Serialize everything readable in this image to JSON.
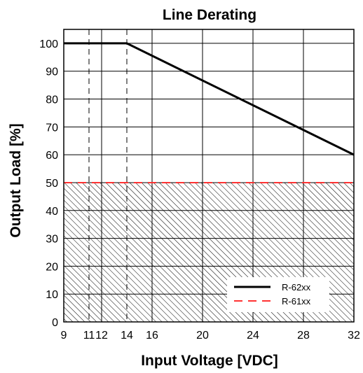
{
  "chart_data": {
    "type": "line",
    "title": "Line Derating",
    "xlabel": "Input Voltage [VDC]",
    "ylabel": "Output Load [%]",
    "xlim": [
      9,
      32
    ],
    "ylim": [
      0,
      105
    ],
    "x_ticks": [
      9,
      11,
      12,
      14,
      16,
      20,
      24,
      28,
      32
    ],
    "x_tick_labels": [
      "9",
      "11",
      "12",
      "14",
      "16",
      "20",
      "24",
      "28",
      "32"
    ],
    "y_ticks": [
      0,
      10,
      20,
      30,
      40,
      50,
      60,
      70,
      80,
      90,
      100
    ],
    "y_tick_labels": [
      "0",
      "10",
      "20",
      "30",
      "40",
      "50",
      "60",
      "70",
      "80",
      "90",
      "100"
    ],
    "grid": true,
    "reference_lines_x": [
      11,
      14
    ],
    "hatched_region": {
      "y_from": 0,
      "y_to": 50
    },
    "legend_position": "bottom-right",
    "series": [
      {
        "name": "R-62xx",
        "color": "#000000",
        "style": "solid",
        "x": [
          9,
          14,
          32
        ],
        "y": [
          100,
          100,
          60
        ]
      },
      {
        "name": "R-61xx",
        "color": "#ff3333",
        "style": "dashed",
        "x": [
          9,
          32
        ],
        "y": [
          50,
          50
        ]
      }
    ]
  }
}
